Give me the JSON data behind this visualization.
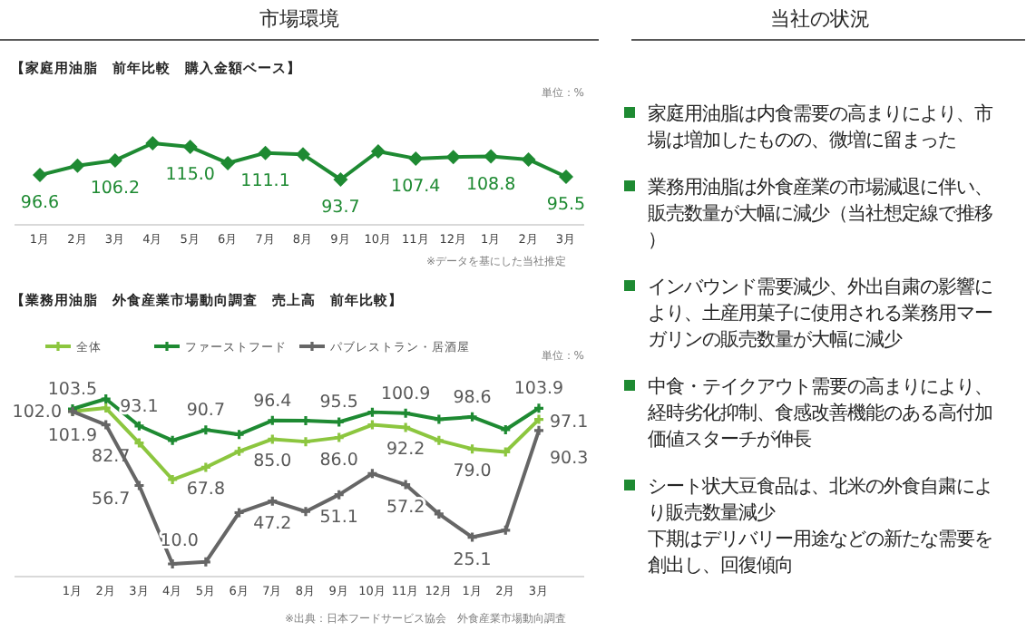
{
  "chart_data": [
    {
      "type": "line",
      "title": "市場環境",
      "subtitle": "【家庭用油脂　前年比較　購入金額ベース】",
      "categories": [
        "1月",
        "2月",
        "3月",
        "4月",
        "5月",
        "6月",
        "7月",
        "8月",
        "9月",
        "10月",
        "11月",
        "12月",
        "1月",
        "2月",
        "3月"
      ],
      "marker": "diamond",
      "annotations": [
        "単位：%",
        "※データを基にした当社推定"
      ],
      "series": [
        {
          "color": "#1e8a32",
          "values": [
            96.6,
            102.7,
            106.2,
            117.4,
            115.0,
            104.4,
            111.1,
            110.1,
            93.7,
            112.1,
            107.4,
            108.4,
            108.8,
            106.8,
            95.5
          ],
          "value_labels": [
            "96.6",
            null,
            "106.2",
            null,
            "115.0",
            null,
            "111.1",
            null,
            "93.7",
            null,
            "107.4",
            null,
            "108.8",
            null,
            "95.5"
          ]
        }
      ]
    },
    {
      "type": "line",
      "subtitle": "【業務用油脂　外食産業市場動向調査　売上高　前年比較】",
      "categories": [
        "1月",
        "2月",
        "3月",
        "4月",
        "5月",
        "6月",
        "7月",
        "8月",
        "9月",
        "10月",
        "11月",
        "12月",
        "1月",
        "2月",
        "3月"
      ],
      "marker": "cross",
      "legend": "top",
      "annotations": [
        "単位：%",
        "※出典：日本フードサービス協会　外食産業市場動向調査"
      ],
      "series": [
        {
          "name": "全体",
          "color": "#8cc63f",
          "values": [
            102.0,
            104.0,
            82.7,
            60.3,
            67.8,
            77.6,
            85.0,
            83.5,
            86.0,
            93.8,
            92.2,
            84.2,
            79.0,
            77.2,
            97.1
          ],
          "value_labels": [
            "102.0",
            null,
            "82.7",
            null,
            "67.8",
            null,
            "85.0",
            null,
            "86.0",
            null,
            "92.2",
            null,
            "79.0",
            null,
            "97.1"
          ]
        },
        {
          "name": "ファーストフード",
          "color": "#1e8a32",
          "values": [
            103.5,
            109.6,
            93.1,
            84.2,
            90.7,
            87.9,
            96.4,
            96.3,
            95.5,
            101.5,
            100.9,
            97.1,
            98.6,
            90.8,
            103.9
          ],
          "value_labels": [
            "103.5",
            null,
            "93.1",
            null,
            "90.7",
            null,
            "96.4",
            null,
            "95.5",
            null,
            "100.9",
            null,
            "98.6",
            null,
            "103.9"
          ]
        },
        {
          "name": "パブレストラン・居酒屋",
          "color": "#666666",
          "values": [
            101.9,
            93.8,
            56.7,
            8.8,
            10.0,
            40.1,
            47.2,
            40.8,
            51.1,
            64.0,
            57.2,
            39.3,
            25.1,
            29.4,
            90.3
          ],
          "value_labels": [
            "101.9",
            null,
            "56.7",
            null,
            "10.0",
            null,
            "47.2",
            null,
            "51.1",
            null,
            "57.2",
            null,
            "25.1",
            null,
            "90.3"
          ]
        }
      ]
    },
    {
      "type": "other",
      "title": "当社の状況",
      "annotations": [
        "家庭用油脂は内食需要の高まりにより、市場は増加したものの、微増に留まった",
        "業務用油脂は外食産業の市場減退に伴い、販売数量が大幅に減少（当社想定線で推移）",
        "インバウンド需要減少、外出自粛の影響により、土産用菓子に使用される業務用マーガリンの販売数量が大幅に減少",
        "中食・テイクアウト需要の高まりにより、経時劣化抑制、食感改善機能のある高付加価値スターチが伸長",
        "シート状大豆食品は、北米の外食自粛により販売数量減少",
        "下期はデリバリー用途などの新たな需要を創出し、回復傾向"
      ]
    }
  ]
}
